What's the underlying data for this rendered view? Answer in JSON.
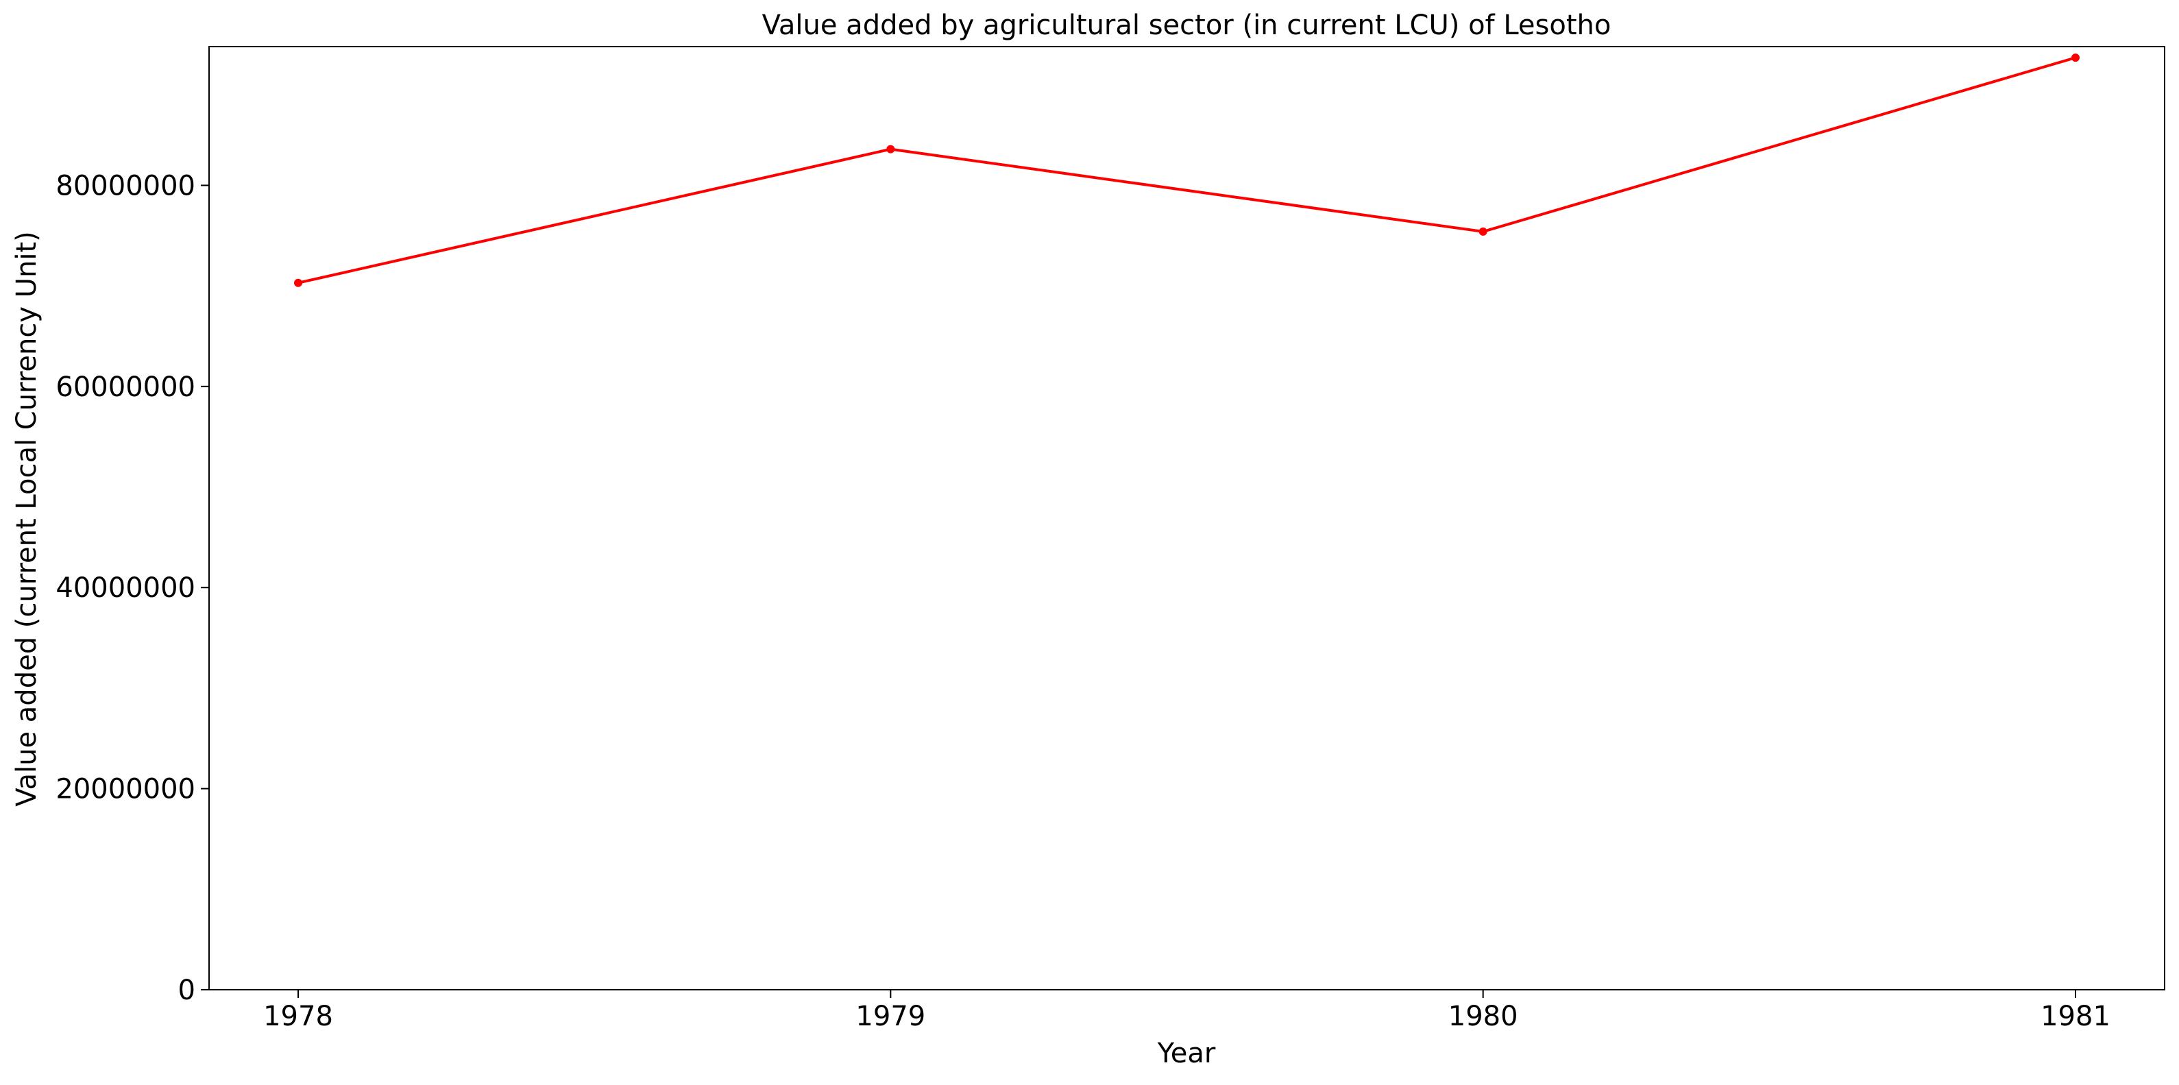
{
  "chart_data": {
    "type": "line",
    "title": "Value added by agricultural sector (in current LCU) of Lesotho",
    "xlabel": "Year",
    "ylabel": "Value added (current Local Currency Unit)",
    "x": [
      "1978",
      "1979",
      "1980",
      "1981"
    ],
    "series": [
      {
        "color": "#ff0000",
        "values": [
          70300000,
          83600000,
          75400000,
          92700000
        ]
      }
    ],
    "ylim": [
      0,
      93800000
    ],
    "yticks": [
      0,
      20000000,
      40000000,
      60000000,
      80000000
    ],
    "ytick_labels": [
      "0",
      "20000000",
      "40000000",
      "60000000",
      "80000000"
    ],
    "grid": false,
    "legend": "none"
  }
}
